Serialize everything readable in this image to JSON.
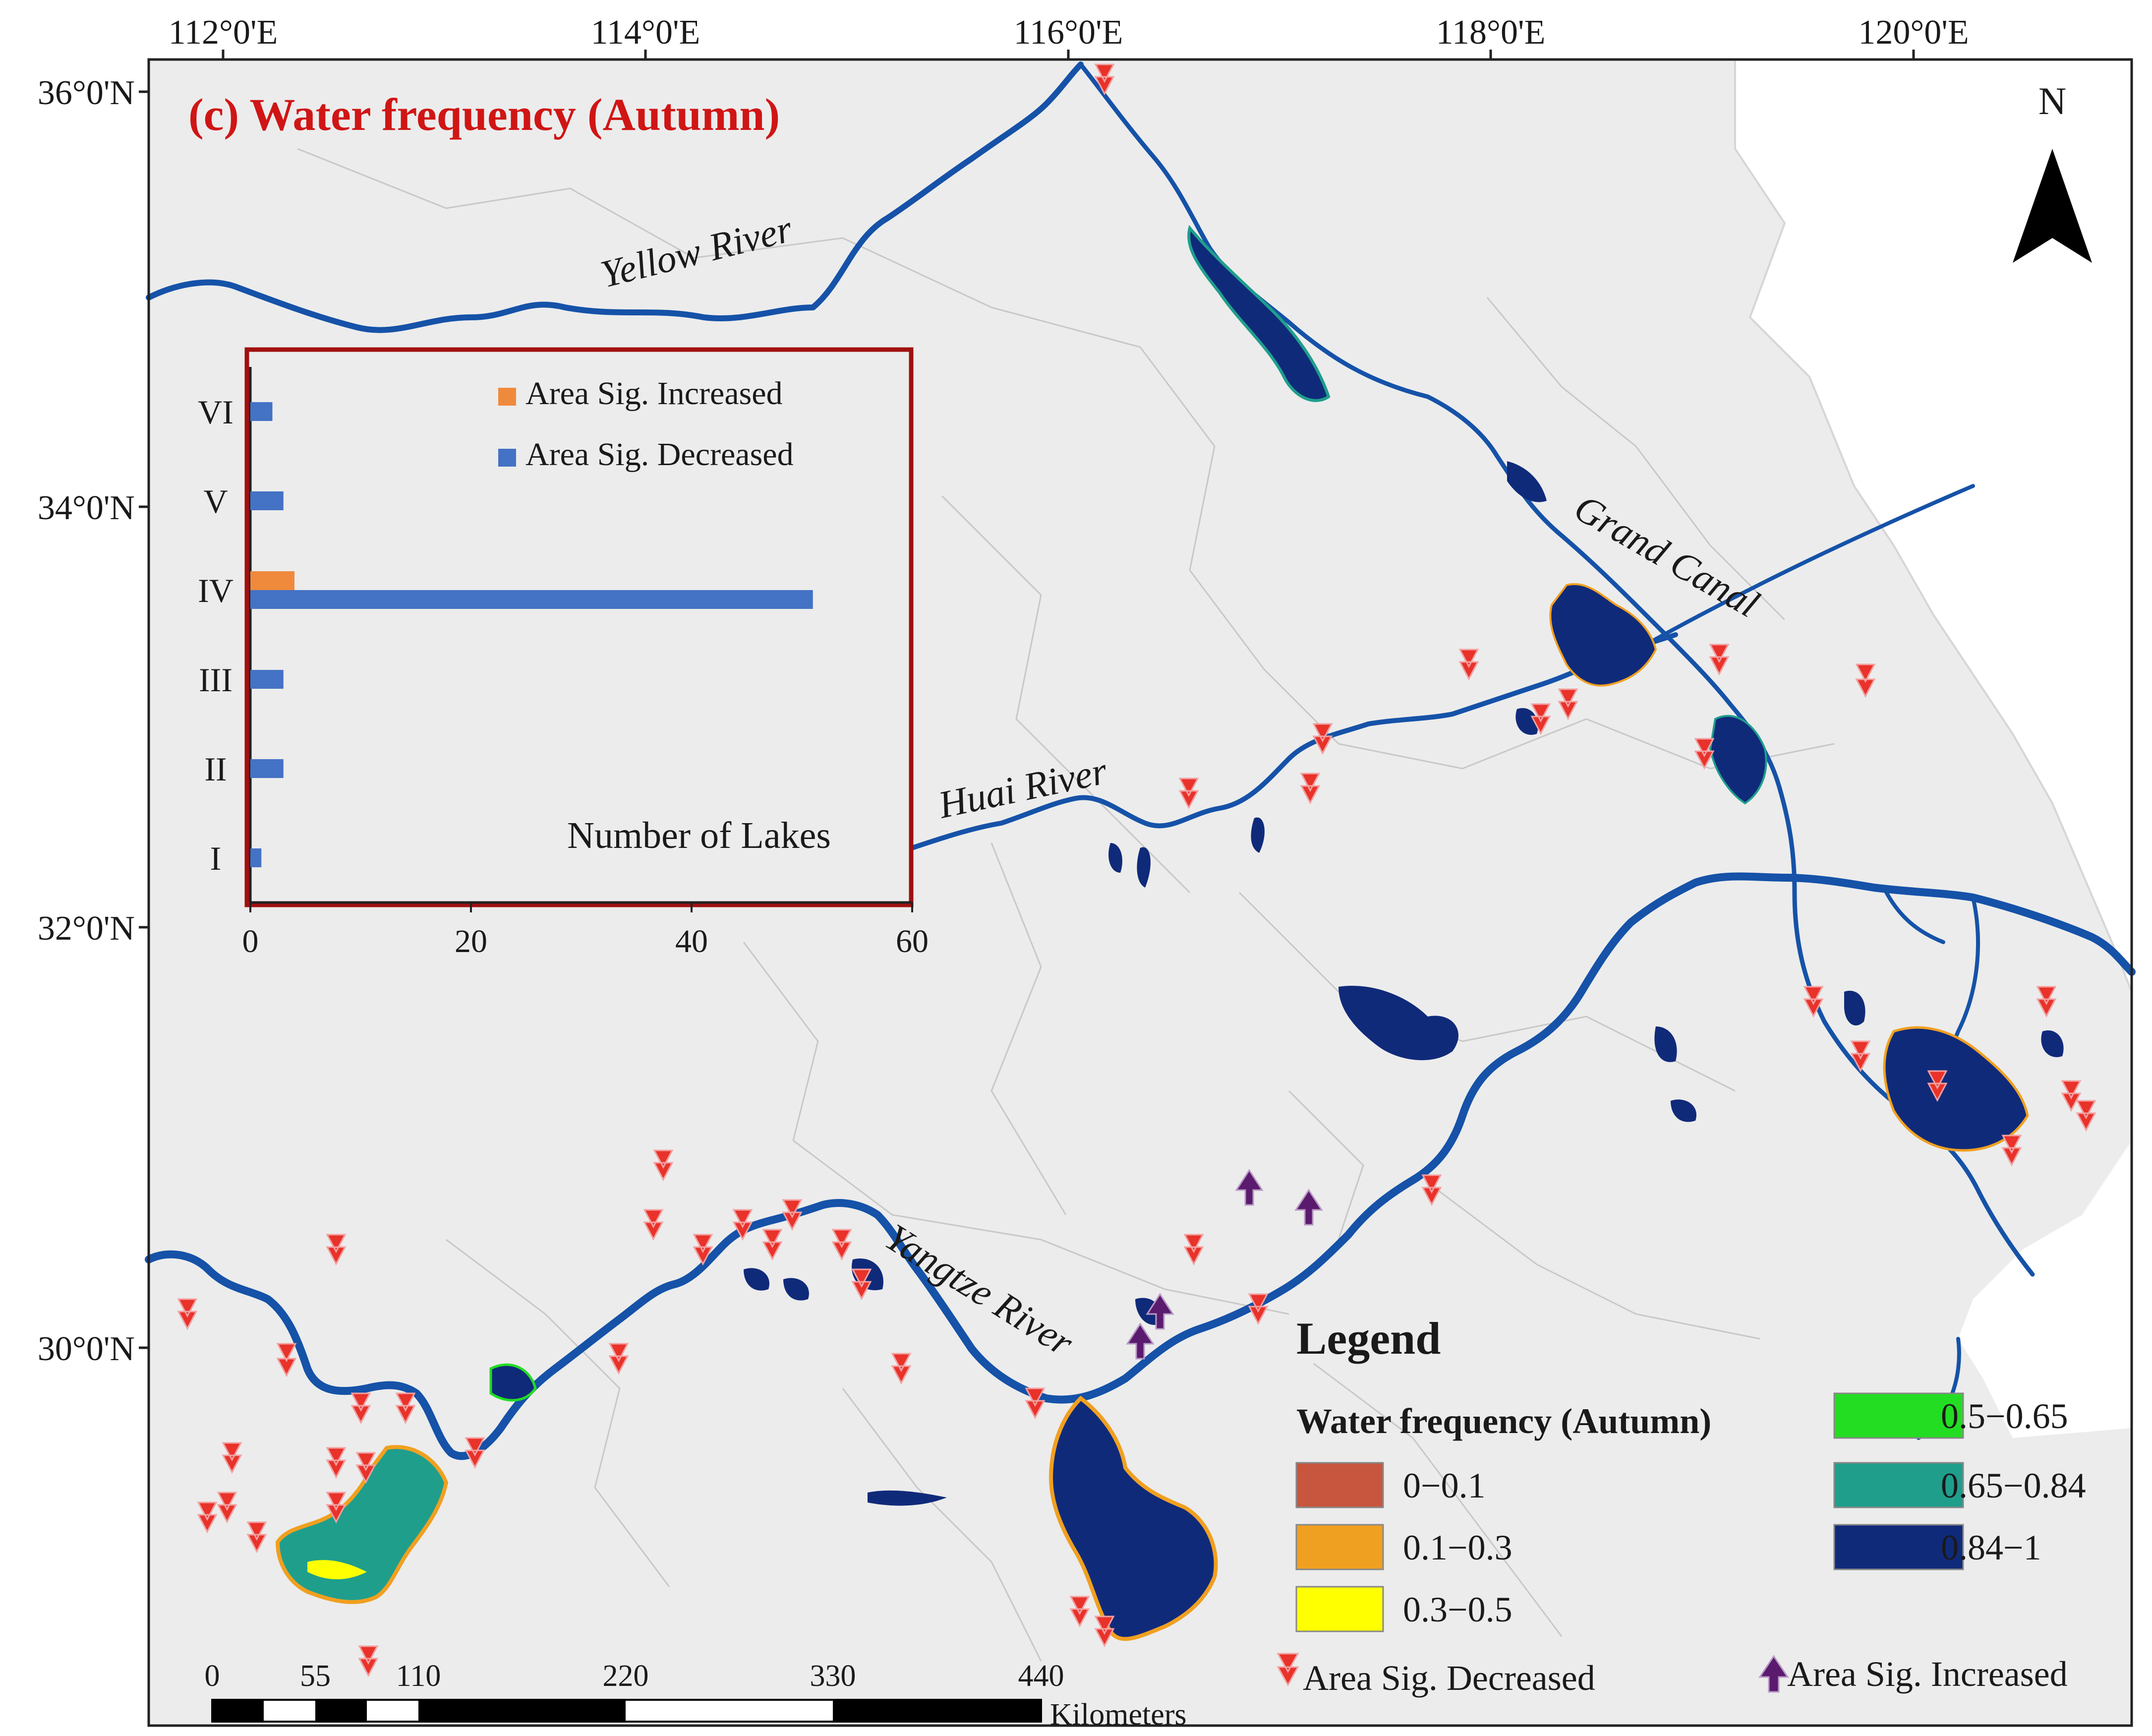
{
  "title": "(c) Water frequency (Autumn)",
  "north_label": "N",
  "longitude_ticks": [
    "112°0'E",
    "114°0'E",
    "116°0'E",
    "118°0'E",
    "120°0'E"
  ],
  "latitude_ticks": [
    "36°0'N",
    "34°0'N",
    "32°0'N",
    "30°0'N"
  ],
  "rivers": {
    "yellow": "Yellow River",
    "grand_canal": "Grand Canal",
    "huai": "Huai River",
    "yangtze": "Yangtze River"
  },
  "scale_bar": {
    "labels": [
      "0",
      "55",
      "110",
      "220",
      "330",
      "440"
    ],
    "unit": "Kilometers"
  },
  "legend": {
    "heading": "Legend",
    "subheading": "Water frequency (Autumn)",
    "classes": [
      {
        "label": "0−0.1",
        "color": "#c8553d"
      },
      {
        "label": "0.1−0.3",
        "color": "#f0a020"
      },
      {
        "label": "0.3−0.5",
        "color": "#ffff00"
      },
      {
        "label": "0.5−0.65",
        "color": "#22dd22"
      },
      {
        "label": "0.65−0.84",
        "color": "#1f9e8c"
      },
      {
        "label": "0.84−1",
        "color": "#102a7a"
      }
    ],
    "decreased_label": "Area Sig. Decreased",
    "increased_label": "Area Sig. Increased"
  },
  "colors": {
    "land": "#ececec",
    "sea": "#ffffff",
    "river": "#1552a8",
    "boundary": "#c8c8c8",
    "decrease_marker": "#e8322a",
    "increase_marker": "#5a1a6e",
    "inset_border": "#a01010",
    "bar_increased": "#ef8a3c",
    "bar_decreased": "#4472c4",
    "title": "#d01515"
  },
  "chart_data": {
    "type": "bar",
    "orientation": "horizontal",
    "categories": [
      "I",
      "II",
      "III",
      "IV",
      "V",
      "VI"
    ],
    "series": [
      {
        "name": "Area Sig. Increased",
        "values": [
          0,
          0,
          0,
          4,
          0,
          0
        ]
      },
      {
        "name": "Area Sig. Decreased",
        "values": [
          1,
          3,
          3,
          51,
          3,
          2
        ]
      }
    ],
    "xlabel": "Number of Lakes",
    "xlim": [
      0,
      60
    ],
    "xticks": [
      0,
      20,
      40,
      60
    ],
    "legend_position": "top-right"
  }
}
